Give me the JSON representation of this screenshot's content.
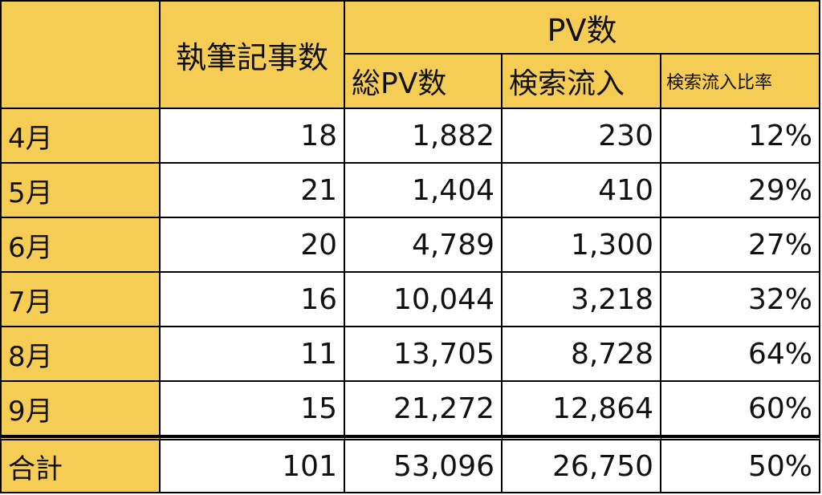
{
  "chart_data": {
    "type": "table",
    "headers": {
      "articles": "執筆記事数",
      "pv_group": "PV数",
      "total_pv": "総PV数",
      "search": "検索流入",
      "ratio": "検索流入比率"
    },
    "rows": [
      {
        "month": "4月",
        "articles": "18",
        "total_pv": "1,882",
        "search": "230",
        "ratio": "12%"
      },
      {
        "month": "5月",
        "articles": "21",
        "total_pv": "1,404",
        "search": "410",
        "ratio": "29%"
      },
      {
        "month": "6月",
        "articles": "20",
        "total_pv": "4,789",
        "search": "1,300",
        "ratio": "27%"
      },
      {
        "month": "7月",
        "articles": "16",
        "total_pv": "10,044",
        "search": "3,218",
        "ratio": "32%"
      },
      {
        "month": "8月",
        "articles": "11",
        "total_pv": "13,705",
        "search": "8,728",
        "ratio": "64%"
      },
      {
        "month": "9月",
        "articles": "15",
        "total_pv": "21,272",
        "search": "12,864",
        "ratio": "60%"
      }
    ],
    "total": {
      "month": "合計",
      "articles": "101",
      "total_pv": "53,096",
      "search": "26,750",
      "ratio": "50%"
    }
  },
  "colors": {
    "header_fill": "#f5cd55",
    "body_fill": "#ffffff",
    "border": "#000000"
  }
}
